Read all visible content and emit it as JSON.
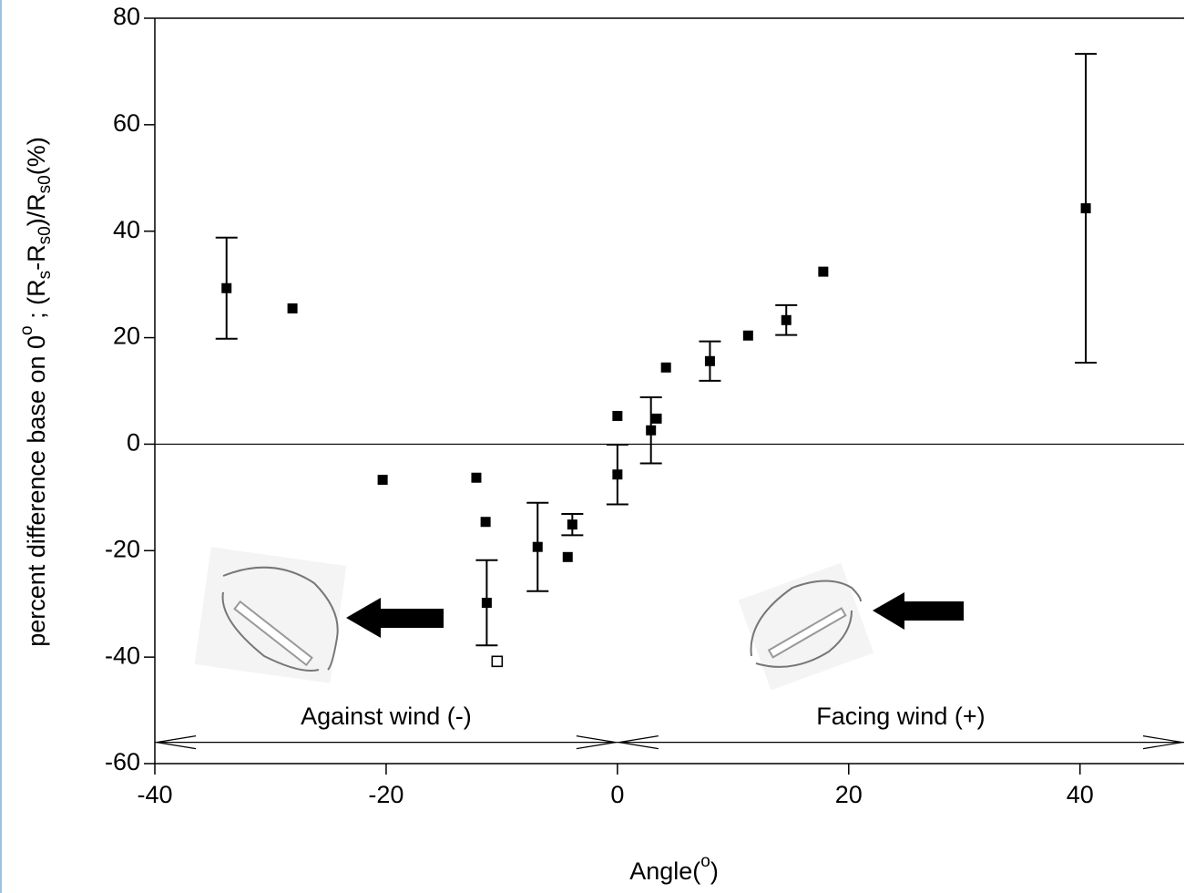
{
  "chart_data": {
    "type": "scatter",
    "xlabel": [
      "Angle(",
      "o",
      ")"
    ],
    "ylabel": [
      "percent difference base on 0",
      "o",
      " ; (R",
      "s",
      "-R",
      "s0",
      ")/R",
      "s0",
      "(%)"
    ],
    "xlim": [
      -40,
      49
    ],
    "ylim": [
      -60,
      80
    ],
    "xticks": [
      -40,
      -20,
      0,
      20,
      40
    ],
    "yticks": [
      -60,
      -40,
      -20,
      0,
      20,
      40,
      60,
      80
    ],
    "reference_line": 0,
    "series": [
      {
        "marker": "filled",
        "color": "#000000",
        "x": [
          -33.8,
          -28.1,
          -20.3,
          -12.2,
          -11.4,
          -11.3,
          -6.9,
          -3.9,
          -4.3,
          0,
          0,
          2.9,
          3.4,
          4.2,
          8.0,
          11.3,
          14.6,
          17.8,
          40.5
        ],
        "values": [
          29.3,
          25.5,
          -6.7,
          -6.3,
          -14.6,
          -29.8,
          -19.3,
          -15.1,
          -21.2,
          5.3,
          -5.7,
          2.6,
          4.8,
          14.4,
          15.6,
          20.4,
          23.3,
          32.4,
          44.3
        ],
        "errors": [
          9.5,
          null,
          null,
          null,
          null,
          8,
          8.3,
          2,
          null,
          null,
          5.6,
          6.2,
          null,
          null,
          3.7,
          null,
          2.8,
          null,
          29
        ]
      },
      {
        "marker": "open",
        "color": "#000000",
        "x": [
          -10.4
        ],
        "values": [
          -40.8
        ]
      }
    ],
    "regions": [
      {
        "label": "Against wind (-)",
        "range": [
          -40,
          0
        ],
        "y": -56
      },
      {
        "label": "Facing wind (+)",
        "range": [
          0,
          49
        ],
        "y": -56
      }
    ]
  }
}
